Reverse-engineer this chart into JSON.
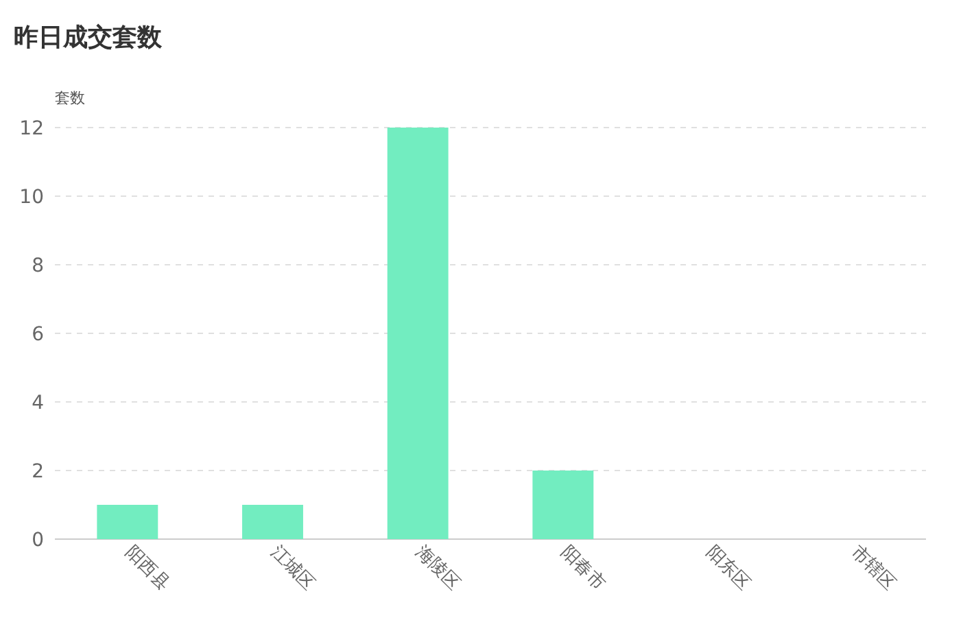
{
  "chart_data": {
    "type": "bar",
    "title": "昨日成交套数",
    "ylabel": "套数",
    "categories": [
      "阳西县",
      "江城区",
      "海陵区",
      "阳春市",
      "阳东区",
      "市辖区"
    ],
    "values": [
      1,
      1,
      12,
      2,
      0,
      0
    ],
    "color": "#72edc0",
    "ylim": [
      0,
      12
    ],
    "yticks": [
      0,
      2,
      4,
      6,
      8,
      10,
      12
    ],
    "grid": "y"
  }
}
